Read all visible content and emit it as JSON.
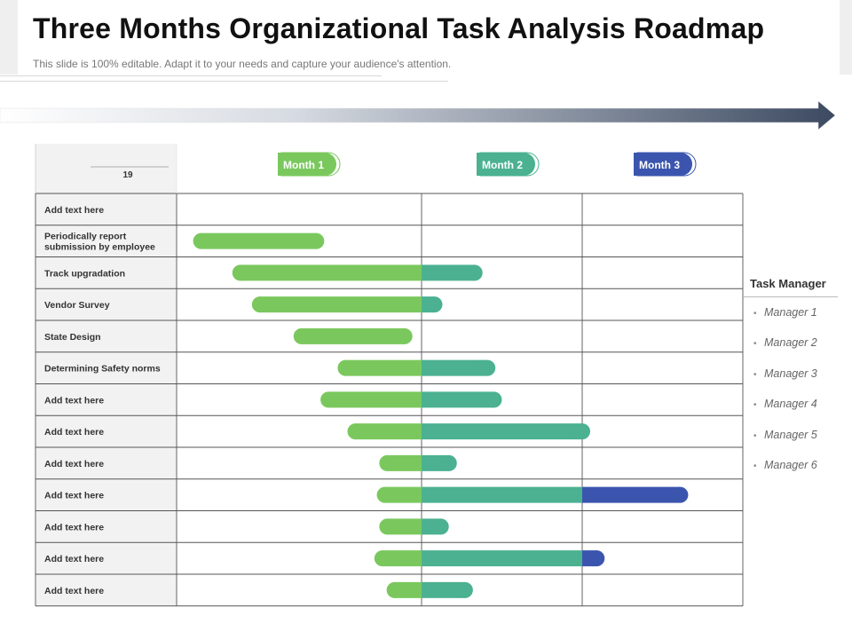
{
  "slide": {
    "title": "Three Months Organizational Task Analysis Roadmap",
    "subtitle": "This slide is 100% editable. Adapt it to your needs and capture your audience's attention."
  },
  "colors": {
    "month1": "#7ac85d",
    "month2": "#4bb190",
    "month3": "#3b55ae",
    "grid": "#555555",
    "header_bg": "#f2f2f2"
  },
  "chart_data": {
    "type": "gantt",
    "header_cell_label": "19",
    "months": [
      {
        "label": "Month 1",
        "color": "#7ac85d"
      },
      {
        "label": "Month 2",
        "color": "#4bb190"
      },
      {
        "label": "Month 3",
        "color": "#3b55ae"
      }
    ],
    "time_unit": "months",
    "xlim": [
      0,
      3
    ],
    "tasks": [
      {
        "label": "Add text here",
        "start": null,
        "end": null
      },
      {
        "label": "Periodically report submission by employee",
        "start": 0.1,
        "end": 0.57
      },
      {
        "label": "Track upgradation",
        "start": 0.26,
        "end": 1.33
      },
      {
        "label": "Vendor Survey",
        "start": 0.34,
        "end": 1.08
      },
      {
        "label": "State Design",
        "start": 0.51,
        "end": 0.93
      },
      {
        "label": "Determining Safety norms",
        "start": 0.69,
        "end": 1.41
      },
      {
        "label": "Add text here",
        "start": 0.62,
        "end": 1.45
      },
      {
        "label": "Add text here",
        "start": 0.73,
        "end": 2.0
      },
      {
        "label": "Add text here",
        "start": 0.86,
        "end": 1.17
      },
      {
        "label": "Add text here",
        "start": 0.85,
        "end": 2.61
      },
      {
        "label": "Add text here",
        "start": 0.86,
        "end": 1.12
      },
      {
        "label": "Add text here",
        "start": 0.84,
        "end": 2.09
      },
      {
        "label": "Add text here",
        "start": 0.89,
        "end": 1.27
      }
    ]
  },
  "legend": {
    "title": "Task Manager",
    "items": [
      "Manager 1",
      "Manager 2",
      "Manager 3",
      "Manager 4",
      "Manager 5",
      "Manager 6"
    ]
  }
}
